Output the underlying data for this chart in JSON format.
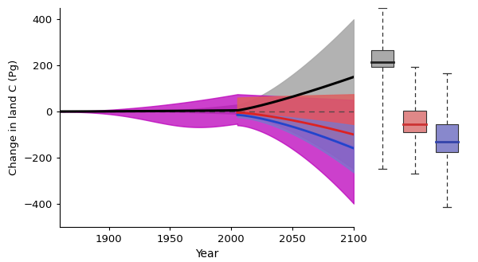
{
  "ylabel": "Change in land C (Pg)",
  "xlabel": "Year",
  "xlim": [
    1860,
    2100
  ],
  "ylim": [
    -500,
    450
  ],
  "yticks": [
    -400,
    -200,
    0,
    200,
    400
  ],
  "xticks": [
    1900,
    1950,
    2000,
    2050,
    2100
  ],
  "colors": {
    "gray_fill": "#aaaaaa",
    "magenta_fill": "#bb00bb",
    "blue_fill": "#7878cc",
    "red_fill": "#dd6060",
    "black_line": "#000000",
    "red_line": "#dd2222",
    "blue_line": "#2244cc",
    "dashed": "#555555"
  },
  "box_gray": {
    "q1": 195,
    "median": 215,
    "q3": 265,
    "whisker_low": -250,
    "whisker_high": 450,
    "color": "#aaaaaa",
    "border": "#555555"
  },
  "box_pink": {
    "q1": -90,
    "median": -55,
    "q3": 5,
    "whisker_low": -270,
    "whisker_high": 195,
    "color": "#e08888",
    "border": "#993333"
  },
  "box_blue": {
    "q1": -175,
    "median": -130,
    "q3": -55,
    "whisker_low": -415,
    "whisker_high": 165,
    "color": "#8888cc",
    "border": "#334499"
  }
}
